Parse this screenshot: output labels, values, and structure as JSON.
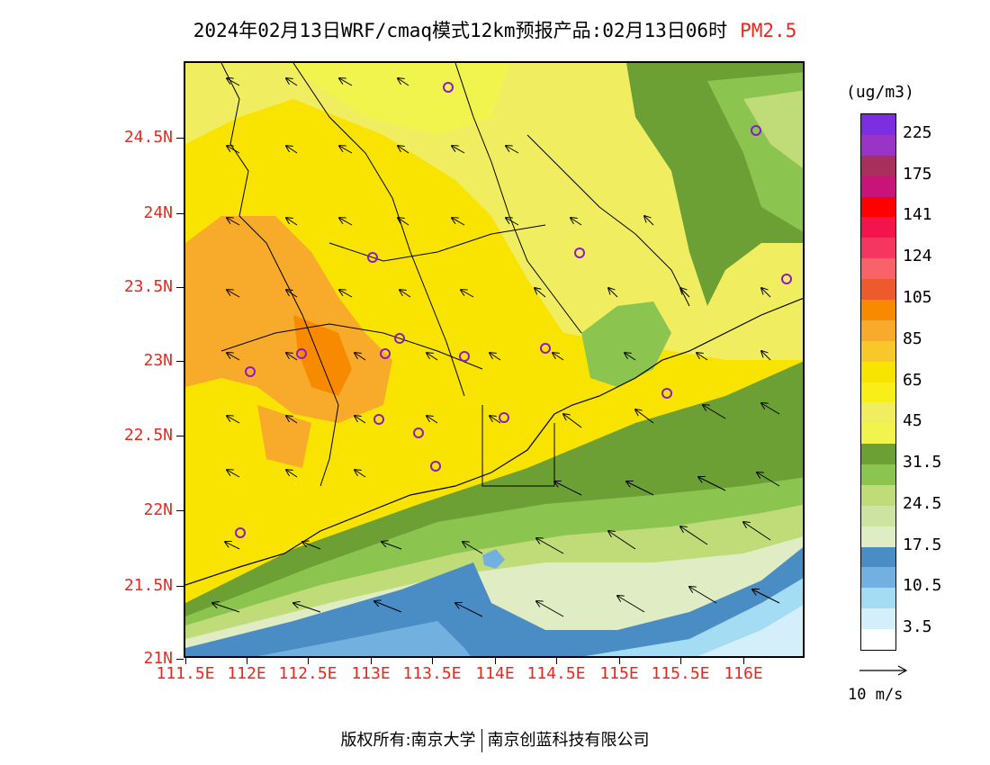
{
  "title": {
    "main": "2024年02月13日WRF/cmaq模式12km预报产品:02月13日06时",
    "species": "PM2.5",
    "species_color": "#e8281e"
  },
  "map": {
    "lat_labels": [
      "24.5N",
      "24N",
      "23.5N",
      "23N",
      "22.5N",
      "22N",
      "21.5N",
      "21N"
    ],
    "lon_labels": [
      "111.5E",
      "112E",
      "112.5E",
      "113E",
      "113.5E",
      "114E",
      "114.5E",
      "115E",
      "115.5E",
      "116E"
    ],
    "axis_label_color": "#e8281e"
  },
  "legend": {
    "unit": "(ug/m3)",
    "colors": [
      "#7c2ee0",
      "#9a34c8",
      "#a82e5c",
      "#c81478",
      "#ff0000",
      "#f4144c",
      "#f43660",
      "#f8626a",
      "#ec5a2e",
      "#f88a00",
      "#f8aa2a",
      "#f8c82a",
      "#f8e400",
      "#f8ee18",
      "#f0ee60",
      "#f0f44c",
      "#6ca034",
      "#8cc450",
      "#c0dc78",
      "#cce4a0",
      "#e0ecc4",
      "#4a8cc4",
      "#72b0e0",
      "#a4dcf4",
      "#d4eefa",
      "#ffffff"
    ],
    "labels": [
      "225",
      "175",
      "141",
      "124",
      "105",
      "85",
      "65",
      "45",
      "31.5",
      "24.5",
      "17.5",
      "10.5",
      "3.5"
    ]
  },
  "wind_reference": "10 m/s",
  "footer": {
    "copyright": "版权所有:南京大学",
    "company": "南京创蓝科技有限公司"
  }
}
